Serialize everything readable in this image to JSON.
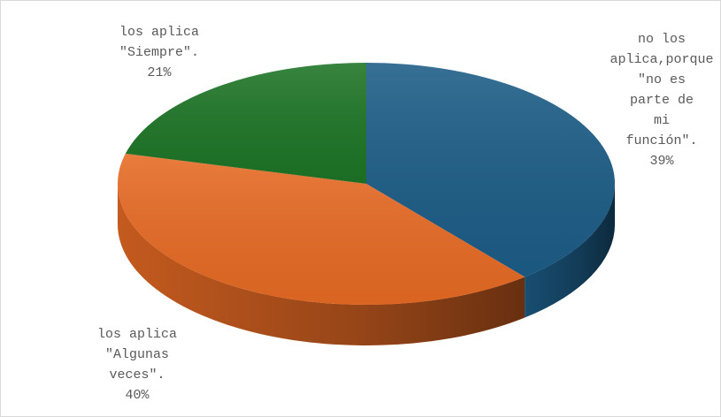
{
  "chart_data": {
    "type": "pie",
    "categories": [
      "no los aplica,porque \"no es parte de mi función\".",
      "los aplica \"Algunas veces\".",
      "los aplica \"Siempre\"."
    ],
    "values": [
      39,
      40,
      21
    ],
    "value_labels": [
      "39%",
      "40%",
      "21%"
    ],
    "colors": [
      "#1c5c86",
      "#e66a24",
      "#1d7426"
    ],
    "three_d": true
  }
}
